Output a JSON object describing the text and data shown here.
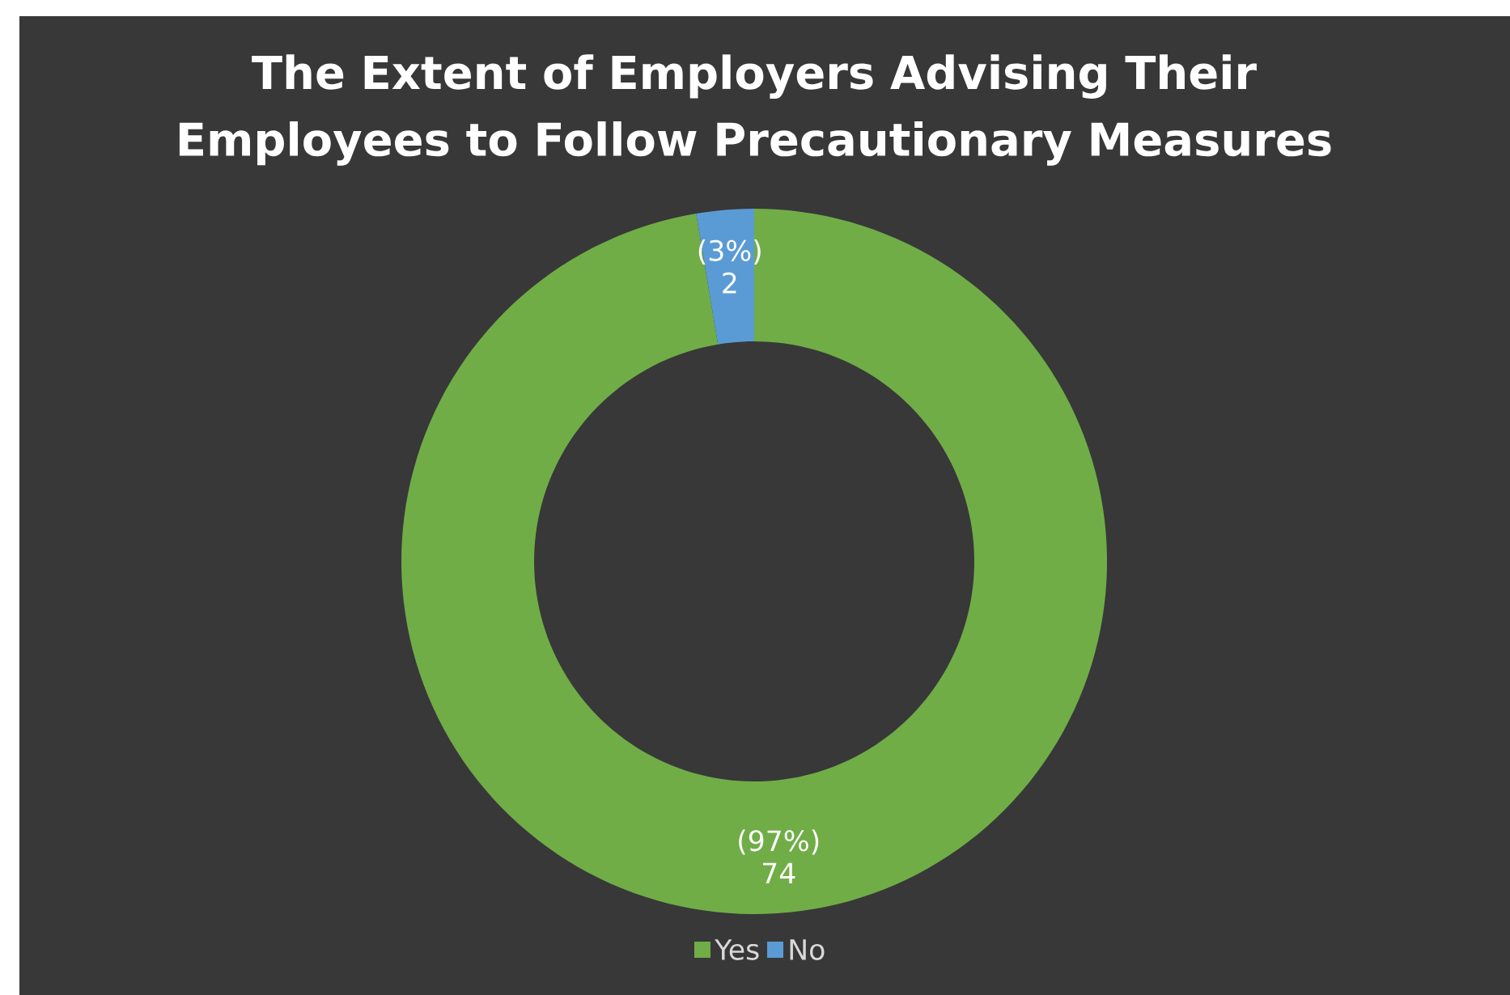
{
  "chart_data": {
    "type": "donut",
    "title": "The Extent of Employers Advising Their Employees to Follow Precautionary Measures",
    "categories": [
      "Yes",
      "No"
    ],
    "values": [
      74,
      2
    ],
    "colors": [
      "#70ad47",
      "#5b9bd5"
    ],
    "value_labels": [
      "(97%) 74",
      "(3%) 2"
    ],
    "legend": "bottom"
  }
}
